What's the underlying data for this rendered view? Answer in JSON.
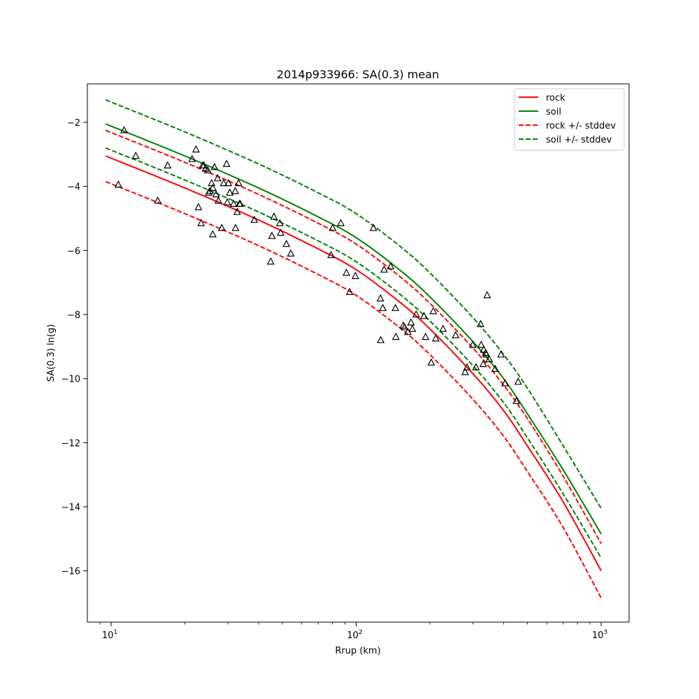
{
  "chart_data": {
    "type": "scatter",
    "title": "2014p933966: SA(0.3) mean",
    "xlabel": "Rrup (km)",
    "ylabel": "SA(0.3) ln(g)",
    "xscale": "log",
    "xlim": [
      8,
      1300
    ],
    "ylim": [
      -17.6,
      -0.8
    ],
    "xticks": [
      {
        "value": 10,
        "base": "10",
        "exp": "1"
      },
      {
        "value": 100,
        "base": "10",
        "exp": "2"
      },
      {
        "value": 1000,
        "base": "10",
        "exp": "3"
      }
    ],
    "x_minor_ticks": [
      9,
      20,
      30,
      40,
      50,
      60,
      70,
      80,
      90,
      200,
      300,
      400,
      500,
      600,
      700,
      800,
      900
    ],
    "yticks": [
      {
        "value": -2,
        "label": "−2"
      },
      {
        "value": -4,
        "label": "−4"
      },
      {
        "value": -6,
        "label": "−6"
      },
      {
        "value": -8,
        "label": "−8"
      },
      {
        "value": -10,
        "label": "−10"
      },
      {
        "value": -12,
        "label": "−12"
      },
      {
        "value": -14,
        "label": "−14"
      },
      {
        "value": -16,
        "label": "−16"
      }
    ],
    "grid": false,
    "legend_position": "top-right",
    "lines": [
      {
        "name": "rock",
        "color": "#ff0000",
        "style": "solid",
        "x": [
          9.5,
          20,
          40,
          70,
          100,
          150,
          200,
          300,
          400,
          500,
          700,
          1000
        ],
        "y": [
          -3.05,
          -4.05,
          -5.05,
          -5.95,
          -6.6,
          -7.6,
          -8.45,
          -9.85,
          -11.0,
          -12.1,
          -13.85,
          -16.0
        ]
      },
      {
        "name": "soil",
        "color": "#008000",
        "style": "solid",
        "x": [
          9.5,
          20,
          40,
          70,
          100,
          150,
          200,
          300,
          400,
          500,
          700,
          1000
        ],
        "y": [
          -2.05,
          -3.05,
          -4.05,
          -4.95,
          -5.6,
          -6.6,
          -7.45,
          -8.85,
          -10.0,
          -11.1,
          -12.85,
          -14.85
        ]
      },
      {
        "name": "rock +/- stddev",
        "color": "#ff0000",
        "style": "dashed",
        "x": [
          9.5,
          20,
          40,
          70,
          100,
          150,
          200,
          300,
          400,
          500,
          700,
          1000
        ],
        "y": [
          -2.25,
          -3.25,
          -4.25,
          -5.15,
          -5.8,
          -6.8,
          -7.65,
          -9.05,
          -10.2,
          -11.25,
          -13.05,
          -15.15
        ]
      },
      {
        "name": "rock +/- stddev",
        "color": "#ff0000",
        "style": "dashed",
        "legend": false,
        "x": [
          9.5,
          20,
          40,
          70,
          100,
          150,
          200,
          300,
          400,
          500,
          700,
          1000
        ],
        "y": [
          -3.85,
          -4.85,
          -5.85,
          -6.75,
          -7.4,
          -8.4,
          -9.25,
          -10.65,
          -11.8,
          -12.9,
          -14.65,
          -16.85
        ]
      },
      {
        "name": "soil +/- stddev",
        "color": "#008000",
        "style": "dashed",
        "x": [
          9.5,
          20,
          40,
          70,
          100,
          150,
          200,
          300,
          400,
          500,
          700,
          1000
        ],
        "y": [
          -1.3,
          -2.3,
          -3.3,
          -4.2,
          -4.85,
          -5.85,
          -6.7,
          -8.1,
          -9.25,
          -10.3,
          -12.1,
          -14.05
        ]
      },
      {
        "name": "soil +/- stddev",
        "color": "#008000",
        "style": "dashed",
        "legend": false,
        "x": [
          9.5,
          20,
          40,
          70,
          100,
          150,
          200,
          300,
          400,
          500,
          700,
          1000
        ],
        "y": [
          -2.8,
          -3.8,
          -4.8,
          -5.7,
          -6.35,
          -7.35,
          -8.2,
          -9.6,
          -10.75,
          -11.85,
          -13.6,
          -15.6
        ]
      }
    ],
    "points": {
      "marker": "triangle",
      "color": "#000000",
      "x": [
        11.3,
        10.7,
        12.6,
        15.5,
        17.0,
        21.4,
        22.2,
        22.7,
        23.3,
        23.6,
        23.9,
        24.3,
        24.8,
        25.0,
        25.3,
        25.7,
        26.0,
        26.0,
        26.4,
        26.8,
        27.2,
        27.4,
        28.3,
        28.8,
        29.6,
        29.8,
        30.1,
        30.5,
        31.6,
        32.1,
        32.2,
        32.7,
        33.1,
        33.4,
        33.6,
        38.4,
        45.3,
        46.2,
        44.8,
        48.8,
        49.2,
        51.9,
        54.1,
        79.0,
        80.2,
        86.6,
        91.2,
        94.1,
        99.3,
        117.6,
        125.6,
        130.0,
        128.4,
        126.0,
        138.2,
        145.2,
        144.6,
        155.7,
        157.5,
        162.6,
        167.5,
        169.6,
        175.7,
        189.1,
        192.0,
        202.4,
        206.3,
        211.3,
        226.2,
        254.7,
        278.4,
        283.5,
        299.0,
        308.3,
        322.0,
        323.9,
        330.2,
        331.5,
        337.9,
        339.4,
        342.4,
        349.0,
        369.4,
        390.1,
        404.8,
        450.5,
        458.3
      ],
      "y": [
        -2.25,
        -3.95,
        -3.05,
        -4.45,
        -3.35,
        -3.15,
        -2.85,
        -4.65,
        -5.15,
        -3.35,
        -3.35,
        -3.45,
        -3.5,
        -4.2,
        -4.15,
        -3.9,
        -4.05,
        -5.5,
        -3.4,
        -4.25,
        -3.75,
        -4.45,
        -5.3,
        -3.9,
        -3.3,
        -4.5,
        -3.9,
        -4.2,
        -4.55,
        -4.15,
        -5.3,
        -4.8,
        -3.9,
        -4.55,
        -4.55,
        -5.05,
        -5.55,
        -4.95,
        -6.35,
        -5.15,
        -5.45,
        -5.8,
        -6.1,
        -6.15,
        -5.3,
        -5.15,
        -6.7,
        -7.3,
        -6.8,
        -5.3,
        -7.5,
        -6.6,
        -7.8,
        -8.8,
        -6.5,
        -8.7,
        -7.8,
        -8.35,
        -8.4,
        -8.55,
        -8.25,
        -8.45,
        -8.0,
        -8.05,
        -8.7,
        -9.5,
        -7.9,
        -8.75,
        -8.45,
        -8.65,
        -9.8,
        -9.65,
        -8.95,
        -9.65,
        -8.3,
        -8.95,
        -9.55,
        -9.1,
        -9.2,
        -9.25,
        -7.4,
        -9.4,
        -9.7,
        -9.25,
        -10.15,
        -10.7,
        -10.1
      ]
    },
    "legend": [
      {
        "label": "rock",
        "color": "#ff0000",
        "style": "solid"
      },
      {
        "label": "soil",
        "color": "#008000",
        "style": "solid"
      },
      {
        "label": "rock +/- stddev",
        "color": "#ff0000",
        "style": "dashed"
      },
      {
        "label": "soil +/- stddev",
        "color": "#008000",
        "style": "dashed"
      }
    ]
  }
}
